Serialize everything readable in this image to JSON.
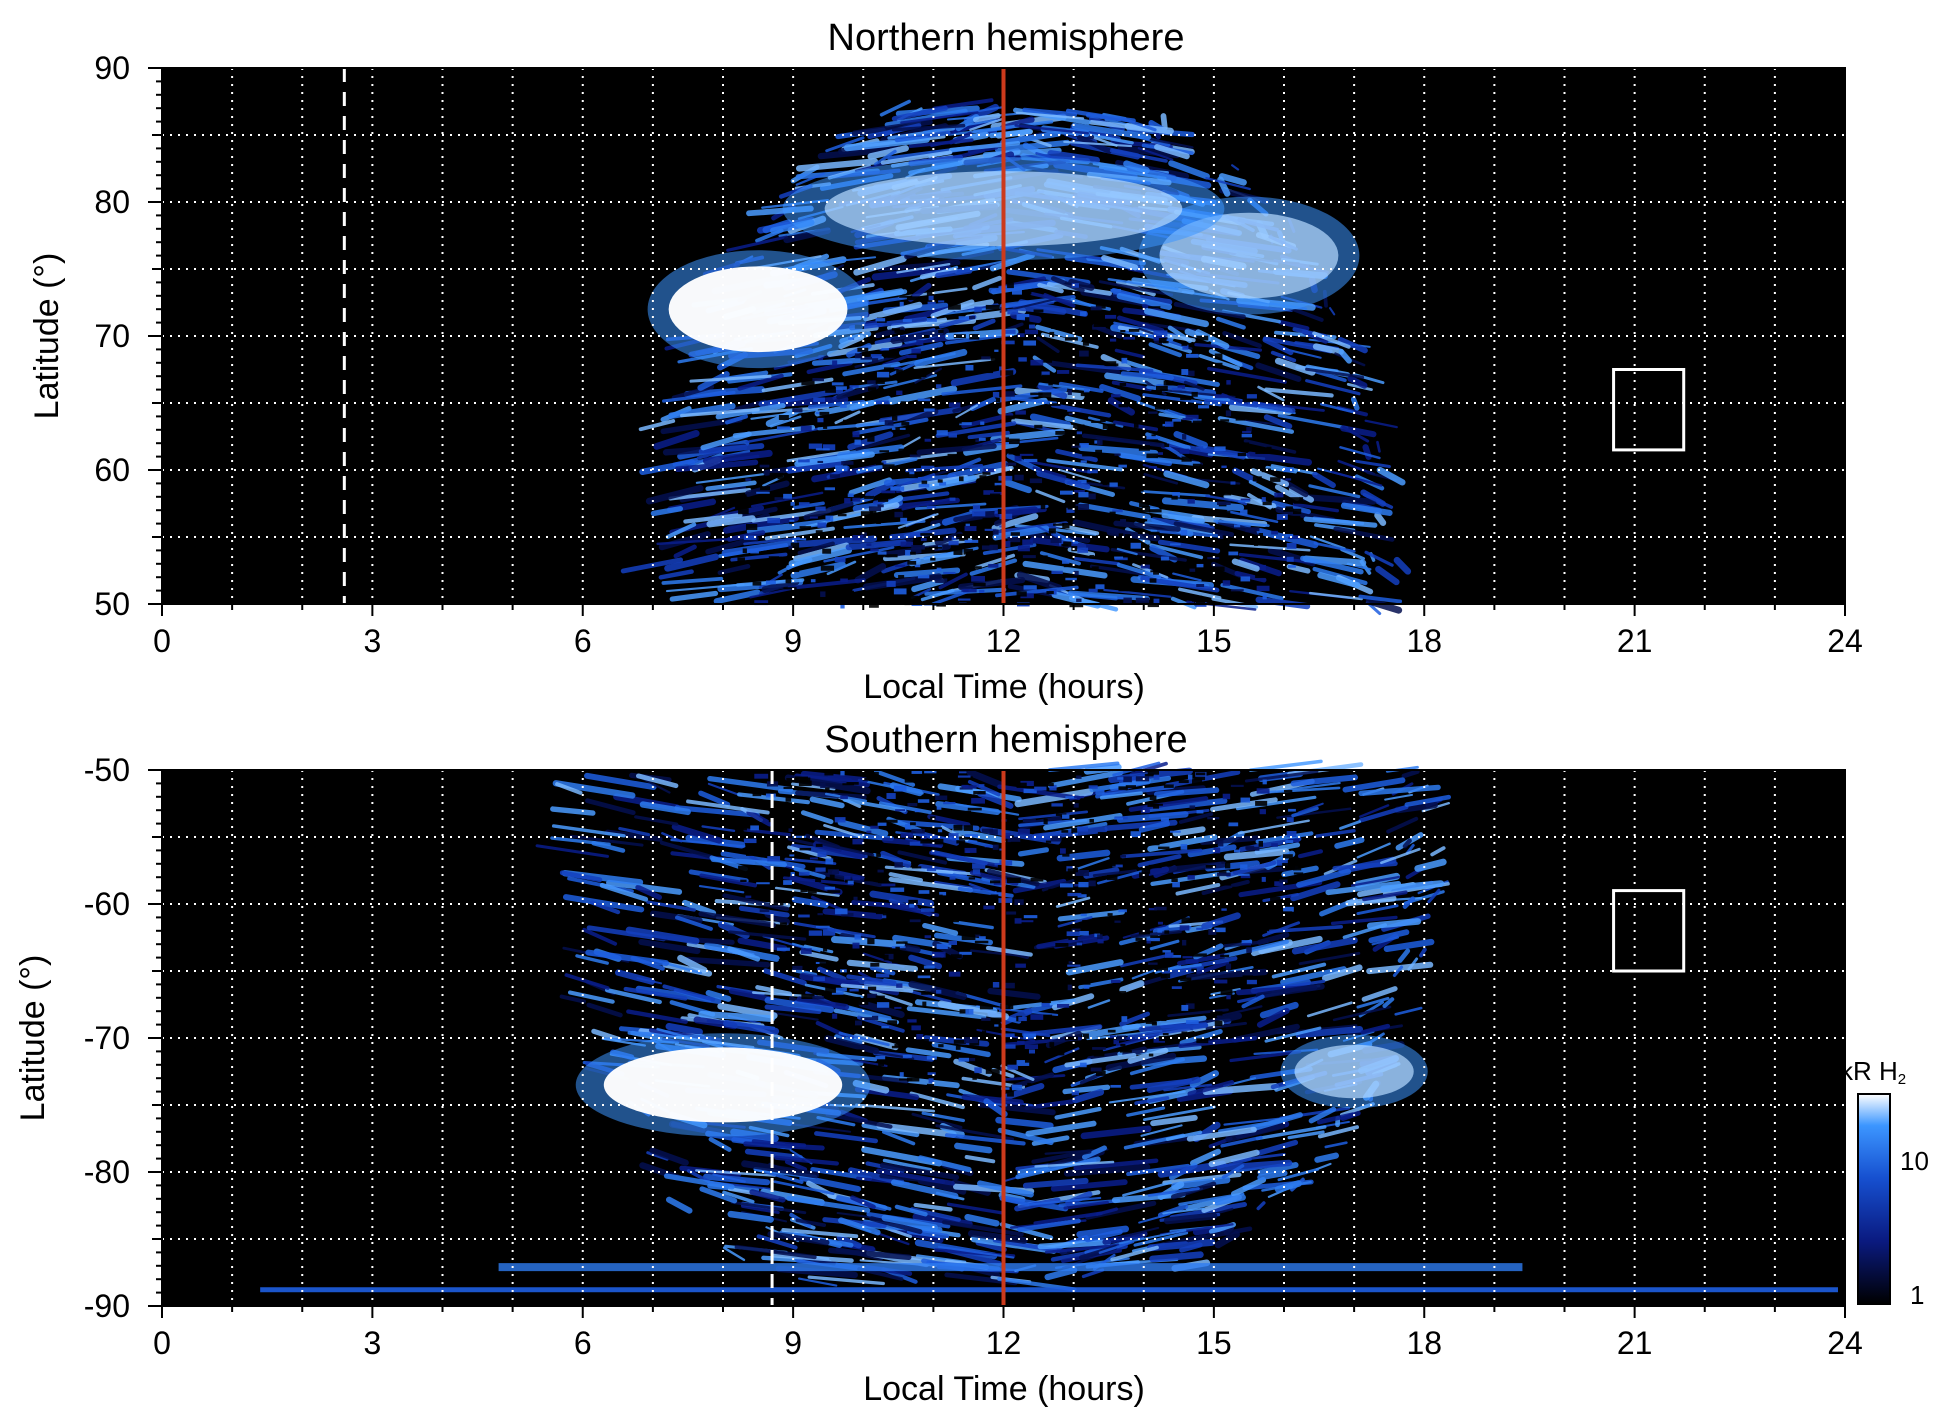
{
  "chart_data": [
    {
      "type": "heatmap",
      "title": "Northern hemisphere",
      "xlabel": "Local Time (hours)",
      "ylabel": "Latitude (°)",
      "xlim": [
        0,
        24
      ],
      "ylim": [
        50,
        90
      ],
      "xticks": [
        "0",
        "3",
        "6",
        "9",
        "12",
        "15",
        "18",
        "21",
        "24"
      ],
      "yticks": [
        "50",
        "60",
        "70",
        "80",
        "90"
      ],
      "grid": true,
      "coverage": {
        "lt_start": 6.5,
        "lt_end": 17.8,
        "max_latitude": 87
      },
      "bright_regions": [
        {
          "lt": [
            7.0,
            10.0
          ],
          "lat": [
            68,
            76
          ],
          "intensity": "saturated"
        },
        {
          "lt": [
            14.0,
            17.0
          ],
          "lat": [
            72,
            80
          ],
          "intensity": "high"
        },
        {
          "lt": [
            9.0,
            15.0
          ],
          "lat": [
            76,
            83
          ],
          "intensity": "high"
        }
      ],
      "reference_lines": [
        {
          "x": 12,
          "style": "solid",
          "color": "#cc3a1c"
        },
        {
          "x": 2.6,
          "style": "dashed",
          "color": "#ffffff"
        }
      ],
      "marker_box": {
        "lt": [
          20.7,
          21.7
        ],
        "lat": [
          61.5,
          67.5
        ]
      }
    },
    {
      "type": "heatmap",
      "title": "Southern hemisphere",
      "xlabel": "Local Time (hours)",
      "ylabel": "Latitude (°)",
      "xlim": [
        0,
        24
      ],
      "ylim": [
        -90,
        -50
      ],
      "xticks": [
        "0",
        "3",
        "6",
        "9",
        "12",
        "15",
        "18",
        "21",
        "24"
      ],
      "yticks": [
        "-90",
        "-80",
        "-70",
        "-60",
        "-50"
      ],
      "grid": true,
      "coverage": {
        "lt_start": 5.0,
        "lt_end": 18.4,
        "min_latitude": -88
      },
      "bright_regions": [
        {
          "lt": [
            6.0,
            10.0
          ],
          "lat": [
            -77,
            -70
          ],
          "intensity": "saturated"
        },
        {
          "lt": [
            16.0,
            18.0
          ],
          "lat": [
            -75,
            -70
          ],
          "intensity": "high"
        }
      ],
      "reference_lines": [
        {
          "x": 12,
          "style": "solid",
          "color": "#cc3a1c"
        },
        {
          "x": 8.7,
          "style": "dashed",
          "color": "#ffffff"
        }
      ],
      "marker_box": {
        "lt": [
          20.7,
          21.7
        ],
        "lat": [
          -65,
          -59
        ]
      }
    }
  ],
  "colorbar": {
    "label_main": "kR H",
    "label_sub": "2",
    "scale": "log",
    "range": [
      1,
      30
    ],
    "ticks": [
      "1",
      "10"
    ],
    "colors": [
      "#000000",
      "#0a1a80",
      "#1650d0",
      "#3c96ff",
      "#ffffff"
    ]
  }
}
